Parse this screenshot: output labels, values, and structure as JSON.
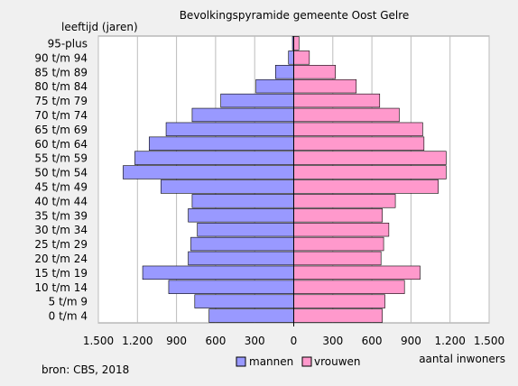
{
  "chart_data": {
    "type": "bar",
    "orientation": "horizontal-population-pyramid",
    "title": "Bevolkingspyramide  gemeente Oost Gelre",
    "ylabel": "leeftijd  (jaren)",
    "xlabel": "aantal inwoners",
    "source": "bron: CBS, 2018",
    "xlim": [
      -1500,
      1500
    ],
    "x_ticks": [
      -1500,
      -1200,
      -900,
      -600,
      -300,
      0,
      300,
      600,
      900,
      1200,
      1500
    ],
    "x_tick_labels": [
      "1.500",
      "1.200",
      "900",
      "600",
      "300",
      "0",
      "300",
      "600",
      "900",
      "1.200",
      "1.500"
    ],
    "categories": [
      "0 t/m 4",
      "5 t/m 9",
      "10 t/m 14",
      "15 t/m 19",
      "20 t/m 24",
      "25 t/m 29",
      "30 t/m 34",
      "35 t/m 39",
      "40 t/m 44",
      "45 t/m 49",
      "50 t/m 54",
      "55 t/m 59",
      "60 t/m 64",
      "65 t/m 69",
      "70 t/m 74",
      "75 t/m 79",
      "80 t/m 84",
      "85 t/m 89",
      "90 t/m 94",
      "95-plus"
    ],
    "series": [
      {
        "name": "mannen",
        "color": "#9999ff",
        "side": "left",
        "values": [
          650,
          760,
          960,
          1160,
          810,
          790,
          740,
          810,
          780,
          1020,
          1310,
          1220,
          1110,
          980,
          780,
          560,
          290,
          140,
          40,
          10
        ]
      },
      {
        "name": "vrouwen",
        "color": "#ff99cc",
        "side": "right",
        "values": [
          680,
          700,
          850,
          970,
          670,
          690,
          730,
          680,
          780,
          1110,
          1170,
          1170,
          1000,
          990,
          810,
          660,
          480,
          320,
          120,
          40
        ]
      }
    ],
    "grid": true,
    "legend_position": "bottom-center"
  }
}
